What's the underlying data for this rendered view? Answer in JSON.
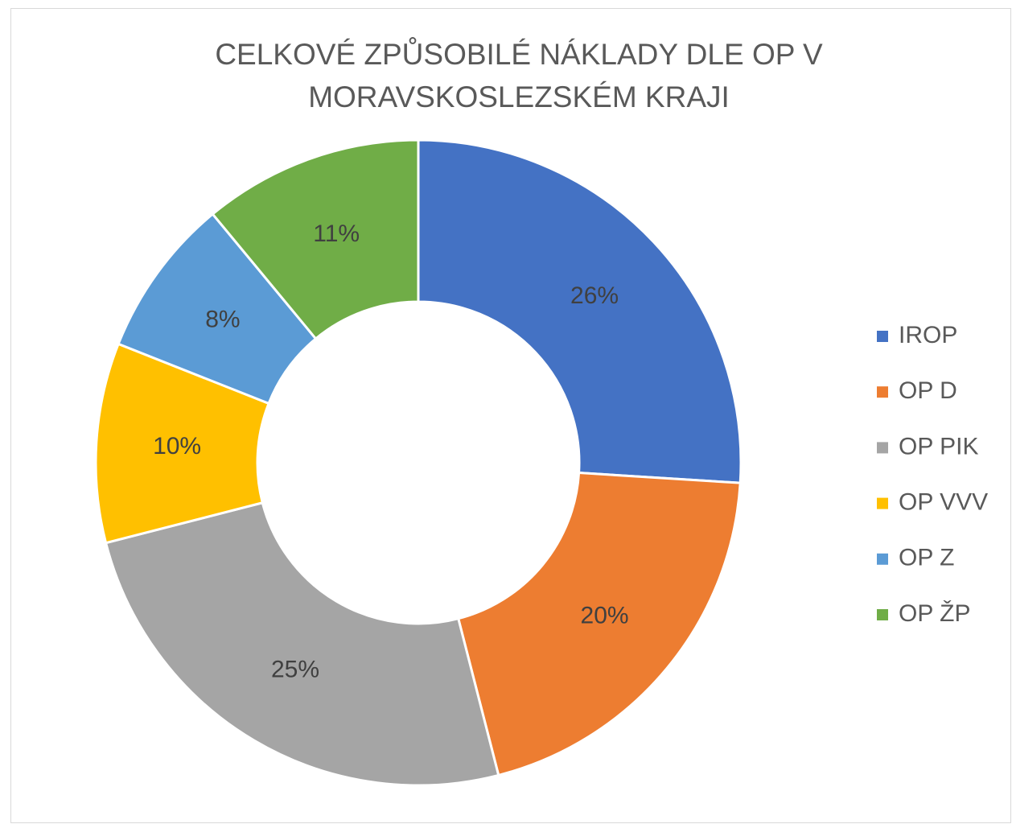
{
  "chart_data": {
    "type": "donut",
    "title": [
      "CELKOVÉ ZPŮSOBILÉ NÁKLADY DLE OP  V",
      "MORAVSKOSLEZSKÉM KRAJI"
    ],
    "categories": [
      "IROP",
      "OP D",
      "OP PIK",
      "OP VVV",
      "OP Z",
      "OP ŽP"
    ],
    "values": [
      26,
      20,
      25,
      10,
      8,
      11
    ],
    "value_labels": [
      "26%",
      "20%",
      "25%",
      "10%",
      "8%",
      "11%"
    ],
    "colors": [
      "#4472c4",
      "#ed7d31",
      "#a5a5a5",
      "#ffc000",
      "#5b9bd5",
      "#70ad47"
    ],
    "legend": "right"
  }
}
